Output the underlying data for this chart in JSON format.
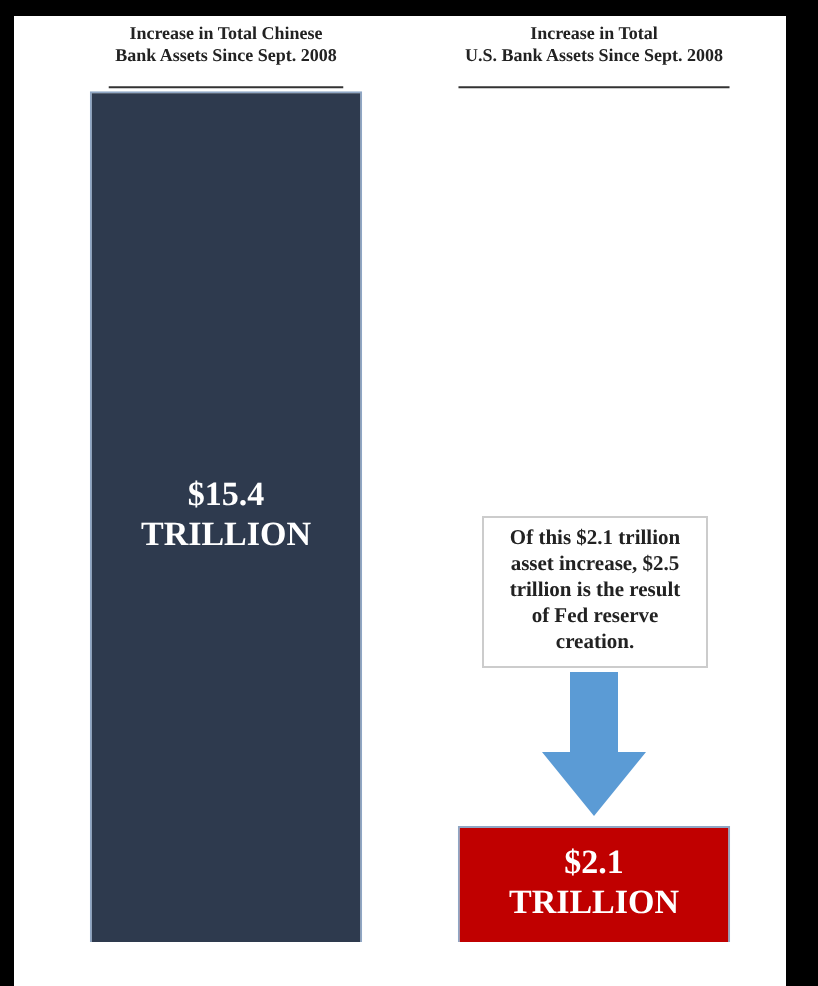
{
  "chart_data": {
    "type": "bar",
    "categories": [
      "Increase in Total Chinese Bank Assets Since Sept. 2008",
      "Increase in Total U.S. Bank Assets Since Sept. 2008"
    ],
    "values": [
      15.4,
      2.1
    ],
    "colors": [
      "#2e3a4e",
      "#c00000"
    ],
    "value_labels": [
      "$15.4 TRILLION",
      "$2.1 TRILLION"
    ],
    "annotations": [
      "Of this $2.1 trillion asset increase, $2.5 trillion is the result of Fed reserve creation."
    ]
  }
}
